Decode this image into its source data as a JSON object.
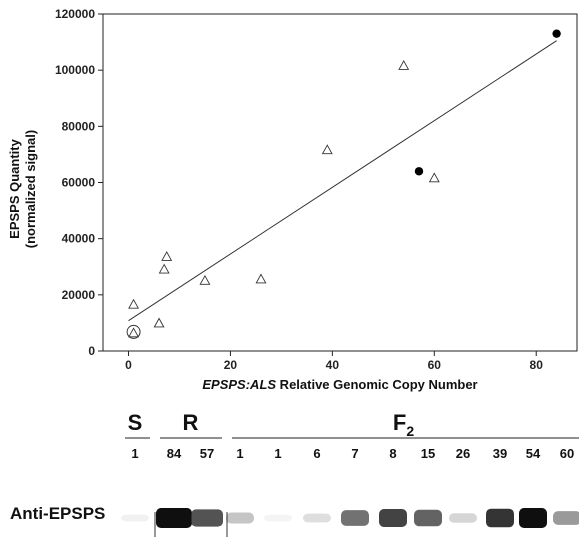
{
  "chart_data": {
    "type": "scatter",
    "ylabel_line1": "EPSPS Quantity",
    "ylabel_line2": "(normalized signal)",
    "xlabel_italic": "EPSPS:ALS",
    "xlabel_rest": " Relative Genomic Copy Number",
    "xlim": [
      -5,
      88
    ],
    "ylim": [
      0,
      120000
    ],
    "x_ticks": [
      0,
      20,
      40,
      60,
      80
    ],
    "y_ticks": [
      0,
      20000,
      40000,
      60000,
      80000,
      100000,
      120000
    ],
    "grid": false,
    "series": [
      {
        "marker": "triangle-open",
        "points": [
          {
            "x": 1,
            "y": 16500
          },
          {
            "x": 6,
            "y": 9800
          },
          {
            "x": 7,
            "y": 29000
          },
          {
            "x": 7.5,
            "y": 33500
          },
          {
            "x": 15,
            "y": 25000
          },
          {
            "x": 26,
            "y": 25500
          },
          {
            "x": 39,
            "y": 71500
          },
          {
            "x": 54,
            "y": 101500
          },
          {
            "x": 60,
            "y": 61500
          },
          {
            "x": 1,
            "y": 6300
          }
        ]
      },
      {
        "marker": "circle-filled",
        "points": [
          {
            "x": 57,
            "y": 64000
          },
          {
            "x": 84,
            "y": 113000
          }
        ]
      },
      {
        "marker": "circle-open",
        "points": [
          {
            "x": 1,
            "y": 6800
          }
        ]
      }
    ],
    "fit_line": {
      "x": [
        0,
        84
      ],
      "y": [
        10800,
        110500
      ]
    }
  },
  "blot": {
    "antibody_label": "Anti-EPSPS",
    "groups": [
      {
        "label": "S",
        "subscript": "",
        "lanes": [
          "1"
        ]
      },
      {
        "label": "R",
        "subscript": "",
        "lanes": [
          "84",
          "57"
        ]
      },
      {
        "label": "F",
        "subscript": "2",
        "lanes": [
          "1",
          "1",
          "6",
          "7",
          "8",
          "15",
          "26",
          "39",
          "54",
          "60"
        ]
      }
    ],
    "band_intensity": [
      0.05,
      1.0,
      0.8,
      0.35,
      0.03,
      0.2,
      0.7,
      0.85,
      0.75,
      0.25,
      0.9,
      1.0,
      0.55
    ]
  }
}
